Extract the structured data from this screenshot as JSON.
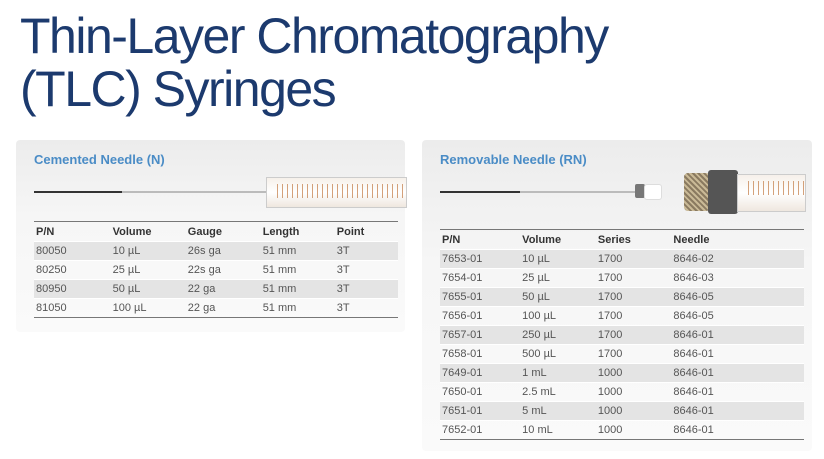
{
  "title": {
    "line1": "Thin-Layer Chromatography",
    "line2": "(TLC) Syringes"
  },
  "cemented": {
    "heading": "Cemented Needle (N)",
    "columns": [
      "P/N",
      "Volume",
      "Gauge",
      "Length",
      "Point"
    ],
    "rows": [
      [
        "80050",
        "10 µL",
        "26s ga",
        "51 mm",
        "3T"
      ],
      [
        "80250",
        "25 µL",
        "22s ga",
        "51 mm",
        "3T"
      ],
      [
        "80950",
        "50 µL",
        "22 ga",
        "51 mm",
        "3T"
      ],
      [
        "81050",
        "100 µL",
        "22 ga",
        "51 mm",
        "3T"
      ]
    ]
  },
  "removable": {
    "heading": "Removable Needle (RN)",
    "columns": [
      "P/N",
      "Volume",
      "Series",
      "Needle"
    ],
    "rows": [
      [
        "7653-01",
        "10 µL",
        "1700",
        "8646-02"
      ],
      [
        "7654-01",
        "25 µL",
        "1700",
        "8646-03"
      ],
      [
        "7655-01",
        "50 µL",
        "1700",
        "8646-05"
      ],
      [
        "7656-01",
        "100 µL",
        "1700",
        "8646-05"
      ],
      [
        "7657-01",
        "250 µL",
        "1700",
        "8646-01"
      ],
      [
        "7658-01",
        "500 µL",
        "1700",
        "8646-01"
      ],
      [
        "7649-01",
        "1 mL",
        "1000",
        "8646-01"
      ],
      [
        "7650-01",
        "2.5 mL",
        "1000",
        "8646-01"
      ],
      [
        "7651-01",
        "5 mL",
        "1000",
        "8646-01"
      ],
      [
        "7652-01",
        "10 mL",
        "1000",
        "8646-01"
      ]
    ]
  },
  "colors": {
    "title": "#1c3a6e",
    "heading": "#4a8cc6",
    "row_shade": "#e4e4e4"
  }
}
